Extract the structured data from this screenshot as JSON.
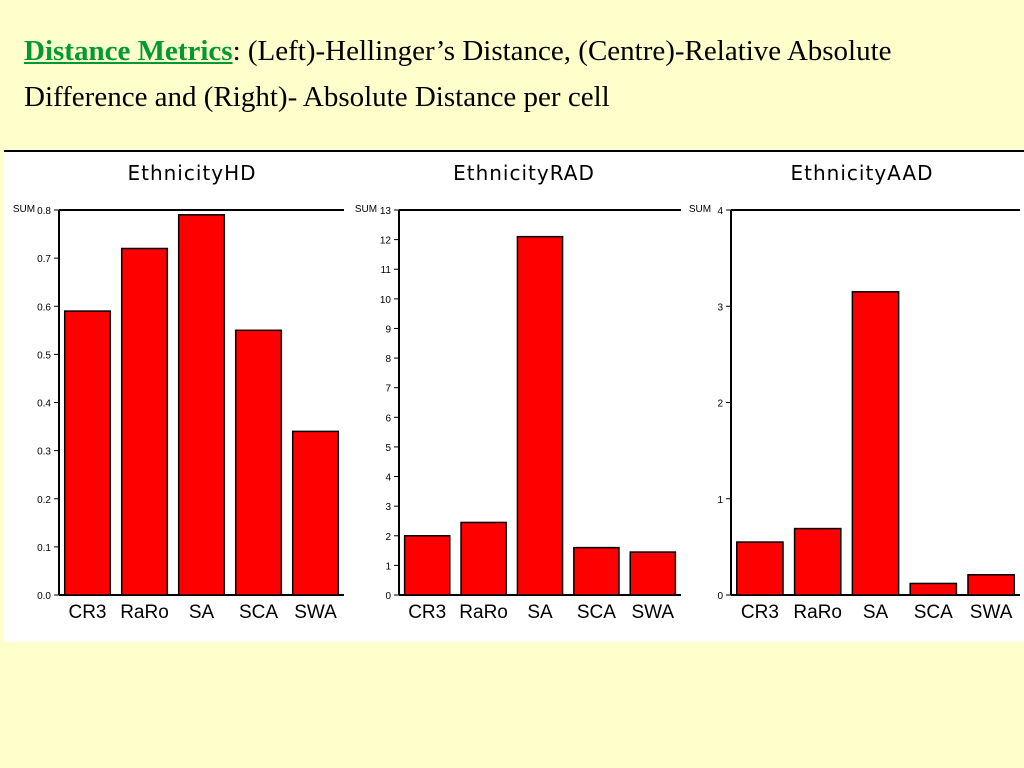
{
  "slide": {
    "title_keyword": "Distance Metrics",
    "title_rest": ": (Left)-Hellinger’s Distance, (Centre)-Relative Absolute Difference and (Right)- Absolute Distance per cell"
  },
  "colors": {
    "background": "#ffffcc",
    "bar": "#ff0000",
    "keyword": "#009933"
  },
  "chart_data": [
    {
      "type": "bar",
      "title": "EthnicityHD",
      "ylabel": "SUM",
      "xlabel": "",
      "categories": [
        "CR3",
        "RaRo",
        "SA",
        "SCA",
        "SWA"
      ],
      "values": [
        0.59,
        0.72,
        0.79,
        0.55,
        0.34
      ],
      "ylim": [
        0,
        0.8
      ],
      "yticks": [
        0,
        0.1,
        0.2,
        0.3,
        0.4,
        0.5,
        0.6,
        0.7,
        0.8
      ],
      "ytick_labels": [
        "0.0",
        "0.1",
        "0.2",
        "0.3",
        "0.4",
        "0.5",
        "0.6",
        "0.7",
        "0.8"
      ]
    },
    {
      "type": "bar",
      "title": "EthnicityRAD",
      "ylabel": "SUM",
      "xlabel": "",
      "categories": [
        "CR3",
        "RaRo",
        "SA",
        "SCA",
        "SWA"
      ],
      "values": [
        2.0,
        2.45,
        12.1,
        1.6,
        1.45
      ],
      "ylim": [
        0,
        13
      ],
      "yticks": [
        0,
        1,
        2,
        3,
        4,
        5,
        6,
        7,
        8,
        9,
        10,
        11,
        12,
        13
      ],
      "ytick_labels": [
        "0",
        "1",
        "2",
        "3",
        "4",
        "5",
        "6",
        "7",
        "8",
        "9",
        "10",
        "11",
        "12",
        "13"
      ]
    },
    {
      "type": "bar",
      "title": "EthnicityAAD",
      "ylabel": "SUM",
      "xlabel": "",
      "categories": [
        "CR3",
        "RaRo",
        "SA",
        "SCA",
        "SWA"
      ],
      "values": [
        0.55,
        0.69,
        3.15,
        0.12,
        0.21
      ],
      "ylim": [
        0,
        4
      ],
      "yticks": [
        0,
        1,
        2,
        3,
        4
      ],
      "ytick_labels": [
        "0",
        "1",
        "2",
        "3",
        "4"
      ]
    }
  ]
}
